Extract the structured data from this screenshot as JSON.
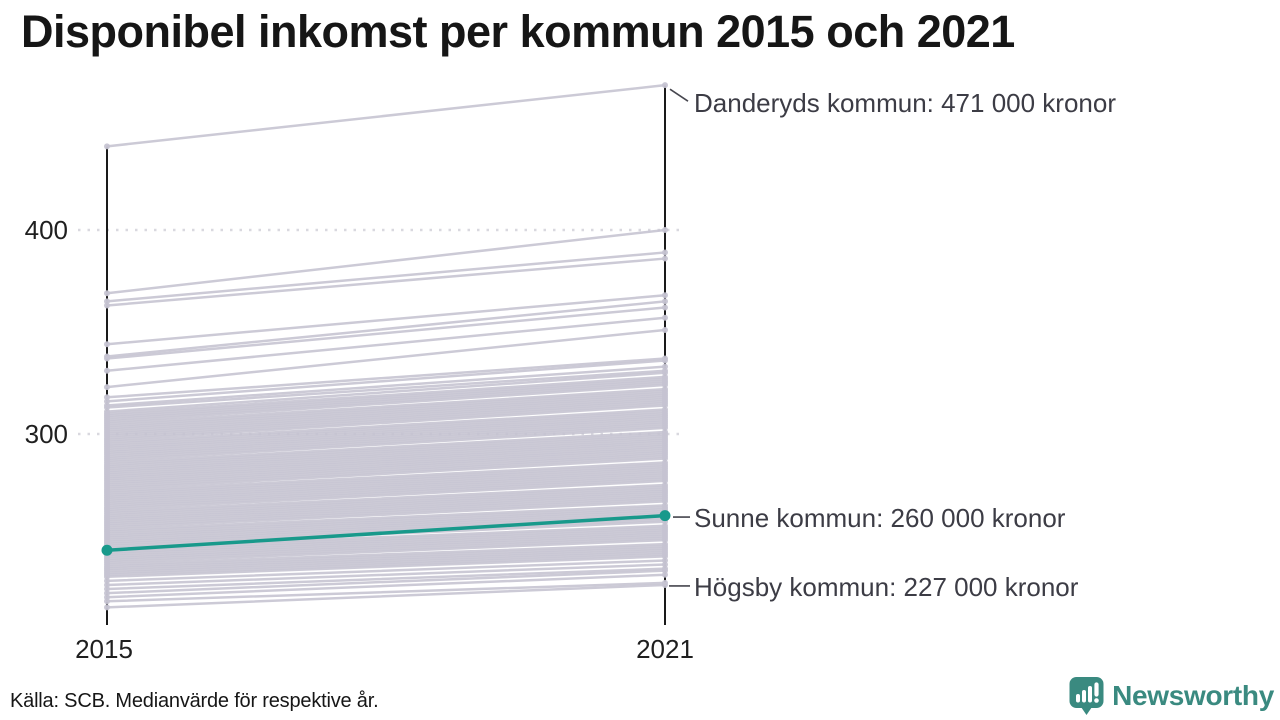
{
  "title": "Disponibel inkomst per kommun 2015 och 2021",
  "source": "Källa: SCB. Medianvärde för respektive år.",
  "logo": {
    "name": "Newsworthy"
  },
  "colors": {
    "title_text": "#161616",
    "axis_text": "#1f1f1f",
    "annotation_text": "#3c3c45",
    "accent": "#18998b",
    "line_gray": "#c5c3d1",
    "axis_line": "#1a1a1a",
    "gridline": "#d8d6de",
    "connector": "#46464e",
    "brand": "#3a8a80"
  },
  "chart_data": {
    "type": "line",
    "subtype": "slope-chart",
    "x_categories": [
      "2015",
      "2021"
    ],
    "y_ticks": [
      400,
      300
    ],
    "ylim": [
      210,
      480
    ],
    "grid": "dotted-horizontal",
    "units": "tusen kronor (labels shown as '000 kronor')",
    "highlight": {
      "name": "Sunne kommun",
      "label": "Sunne kommun: 260 000 kronor",
      "values": [
        243,
        260
      ]
    },
    "annotations": [
      {
        "name": "Danderyds kommun",
        "label": "Danderyds kommun: 471 000 kronor",
        "values": [
          441,
          471
        ]
      },
      {
        "name": "Högsby kommun",
        "label": "Högsby kommun: 227 000 kronor",
        "values": [
          218,
          227
        ]
      }
    ],
    "background_lines": [
      [
        441,
        471
      ],
      [
        369,
        400
      ],
      [
        365,
        389
      ],
      [
        363,
        386
      ],
      [
        344,
        368
      ],
      [
        338,
        365
      ],
      [
        337,
        362
      ],
      [
        331,
        357
      ],
      [
        323,
        351
      ],
      [
        318,
        337
      ],
      [
        316,
        336
      ],
      [
        314,
        333
      ],
      [
        313,
        331
      ],
      [
        311,
        330
      ],
      [
        310,
        328
      ],
      [
        309,
        327
      ],
      [
        308,
        326
      ],
      [
        307,
        325
      ],
      [
        306,
        324
      ],
      [
        305,
        322
      ],
      [
        304,
        321
      ],
      [
        303,
        320
      ],
      [
        302,
        319
      ],
      [
        301,
        318
      ],
      [
        300,
        317
      ],
      [
        299,
        316
      ],
      [
        298,
        315
      ],
      [
        297,
        314
      ],
      [
        296,
        312
      ],
      [
        295,
        311
      ],
      [
        294,
        310
      ],
      [
        293,
        309
      ],
      [
        292,
        308
      ],
      [
        291,
        307
      ],
      [
        290,
        306
      ],
      [
        289,
        305
      ],
      [
        288,
        304
      ],
      [
        287,
        303
      ],
      [
        286,
        301
      ],
      [
        285,
        300
      ],
      [
        284,
        299
      ],
      [
        283,
        298
      ],
      [
        282,
        297
      ],
      [
        281,
        296
      ],
      [
        280,
        295
      ],
      [
        279,
        294
      ],
      [
        278,
        293
      ],
      [
        277,
        292
      ],
      [
        276,
        291
      ],
      [
        275,
        290
      ],
      [
        274,
        289
      ],
      [
        273,
        288
      ],
      [
        272,
        286
      ],
      [
        271,
        285
      ],
      [
        270,
        284
      ],
      [
        269,
        283
      ],
      [
        268,
        282
      ],
      [
        267,
        281
      ],
      [
        266,
        280
      ],
      [
        265,
        279
      ],
      [
        264,
        278
      ],
      [
        263,
        277
      ],
      [
        262,
        275
      ],
      [
        261,
        274
      ],
      [
        260,
        273
      ],
      [
        259,
        272
      ],
      [
        258,
        271
      ],
      [
        257,
        270
      ],
      [
        256,
        269
      ],
      [
        255,
        268
      ],
      [
        254,
        267
      ],
      [
        253,
        265
      ],
      [
        252,
        264
      ],
      [
        251,
        263
      ],
      [
        250,
        262
      ],
      [
        249,
        261
      ],
      [
        248,
        260
      ],
      [
        247,
        259
      ],
      [
        246,
        258
      ],
      [
        245,
        257
      ],
      [
        244,
        255
      ],
      [
        243,
        254
      ],
      [
        242,
        253
      ],
      [
        241,
        252
      ],
      [
        240,
        251
      ],
      [
        239,
        250
      ],
      [
        238,
        249
      ],
      [
        237,
        248
      ],
      [
        236,
        246
      ],
      [
        235,
        245
      ],
      [
        234,
        244
      ],
      [
        233,
        243
      ],
      [
        232,
        242
      ],
      [
        231,
        241
      ],
      [
        230,
        240
      ],
      [
        228,
        238
      ],
      [
        226,
        236
      ],
      [
        224,
        234
      ],
      [
        222,
        233
      ],
      [
        220,
        231
      ],
      [
        218,
        227
      ],
      [
        215,
        226
      ]
    ]
  }
}
